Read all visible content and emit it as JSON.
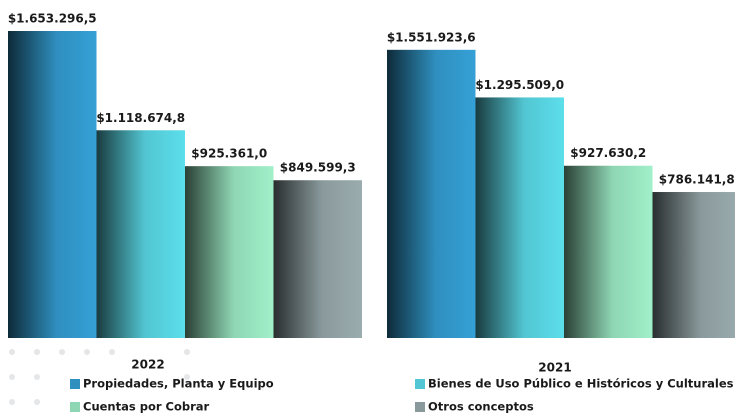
{
  "chart_data": {
    "type": "bar",
    "categories": [
      "2022",
      "2021"
    ],
    "series": [
      {
        "name": "Propiedades, Planta y Equipo",
        "color": "#2f8fbf",
        "values": [
          1653296.5,
          1551923.6
        ],
        "value_labels": [
          "$1.653.296,5",
          "$1.551.923,6"
        ]
      },
      {
        "name": "Bienes de Uso Público e Históricos y Culturales",
        "color": "#52c6d2",
        "values": [
          1118674.8,
          1295509.0
        ],
        "value_labels": [
          "$1.118.674,8",
          "$1.295.509,0"
        ]
      },
      {
        "name": "Cuentas por Cobrar",
        "color": "#8fd6b4",
        "values": [
          925361.0,
          927630.2
        ],
        "value_labels": [
          "$925.361,0",
          "$927.630,2"
        ]
      },
      {
        "name": "Otros conceptos",
        "color": "#8a9a9c",
        "values": [
          849599.3,
          786141.8
        ],
        "value_labels": [
          "$849.599,3",
          "$786.141,8"
        ]
      }
    ]
  }
}
